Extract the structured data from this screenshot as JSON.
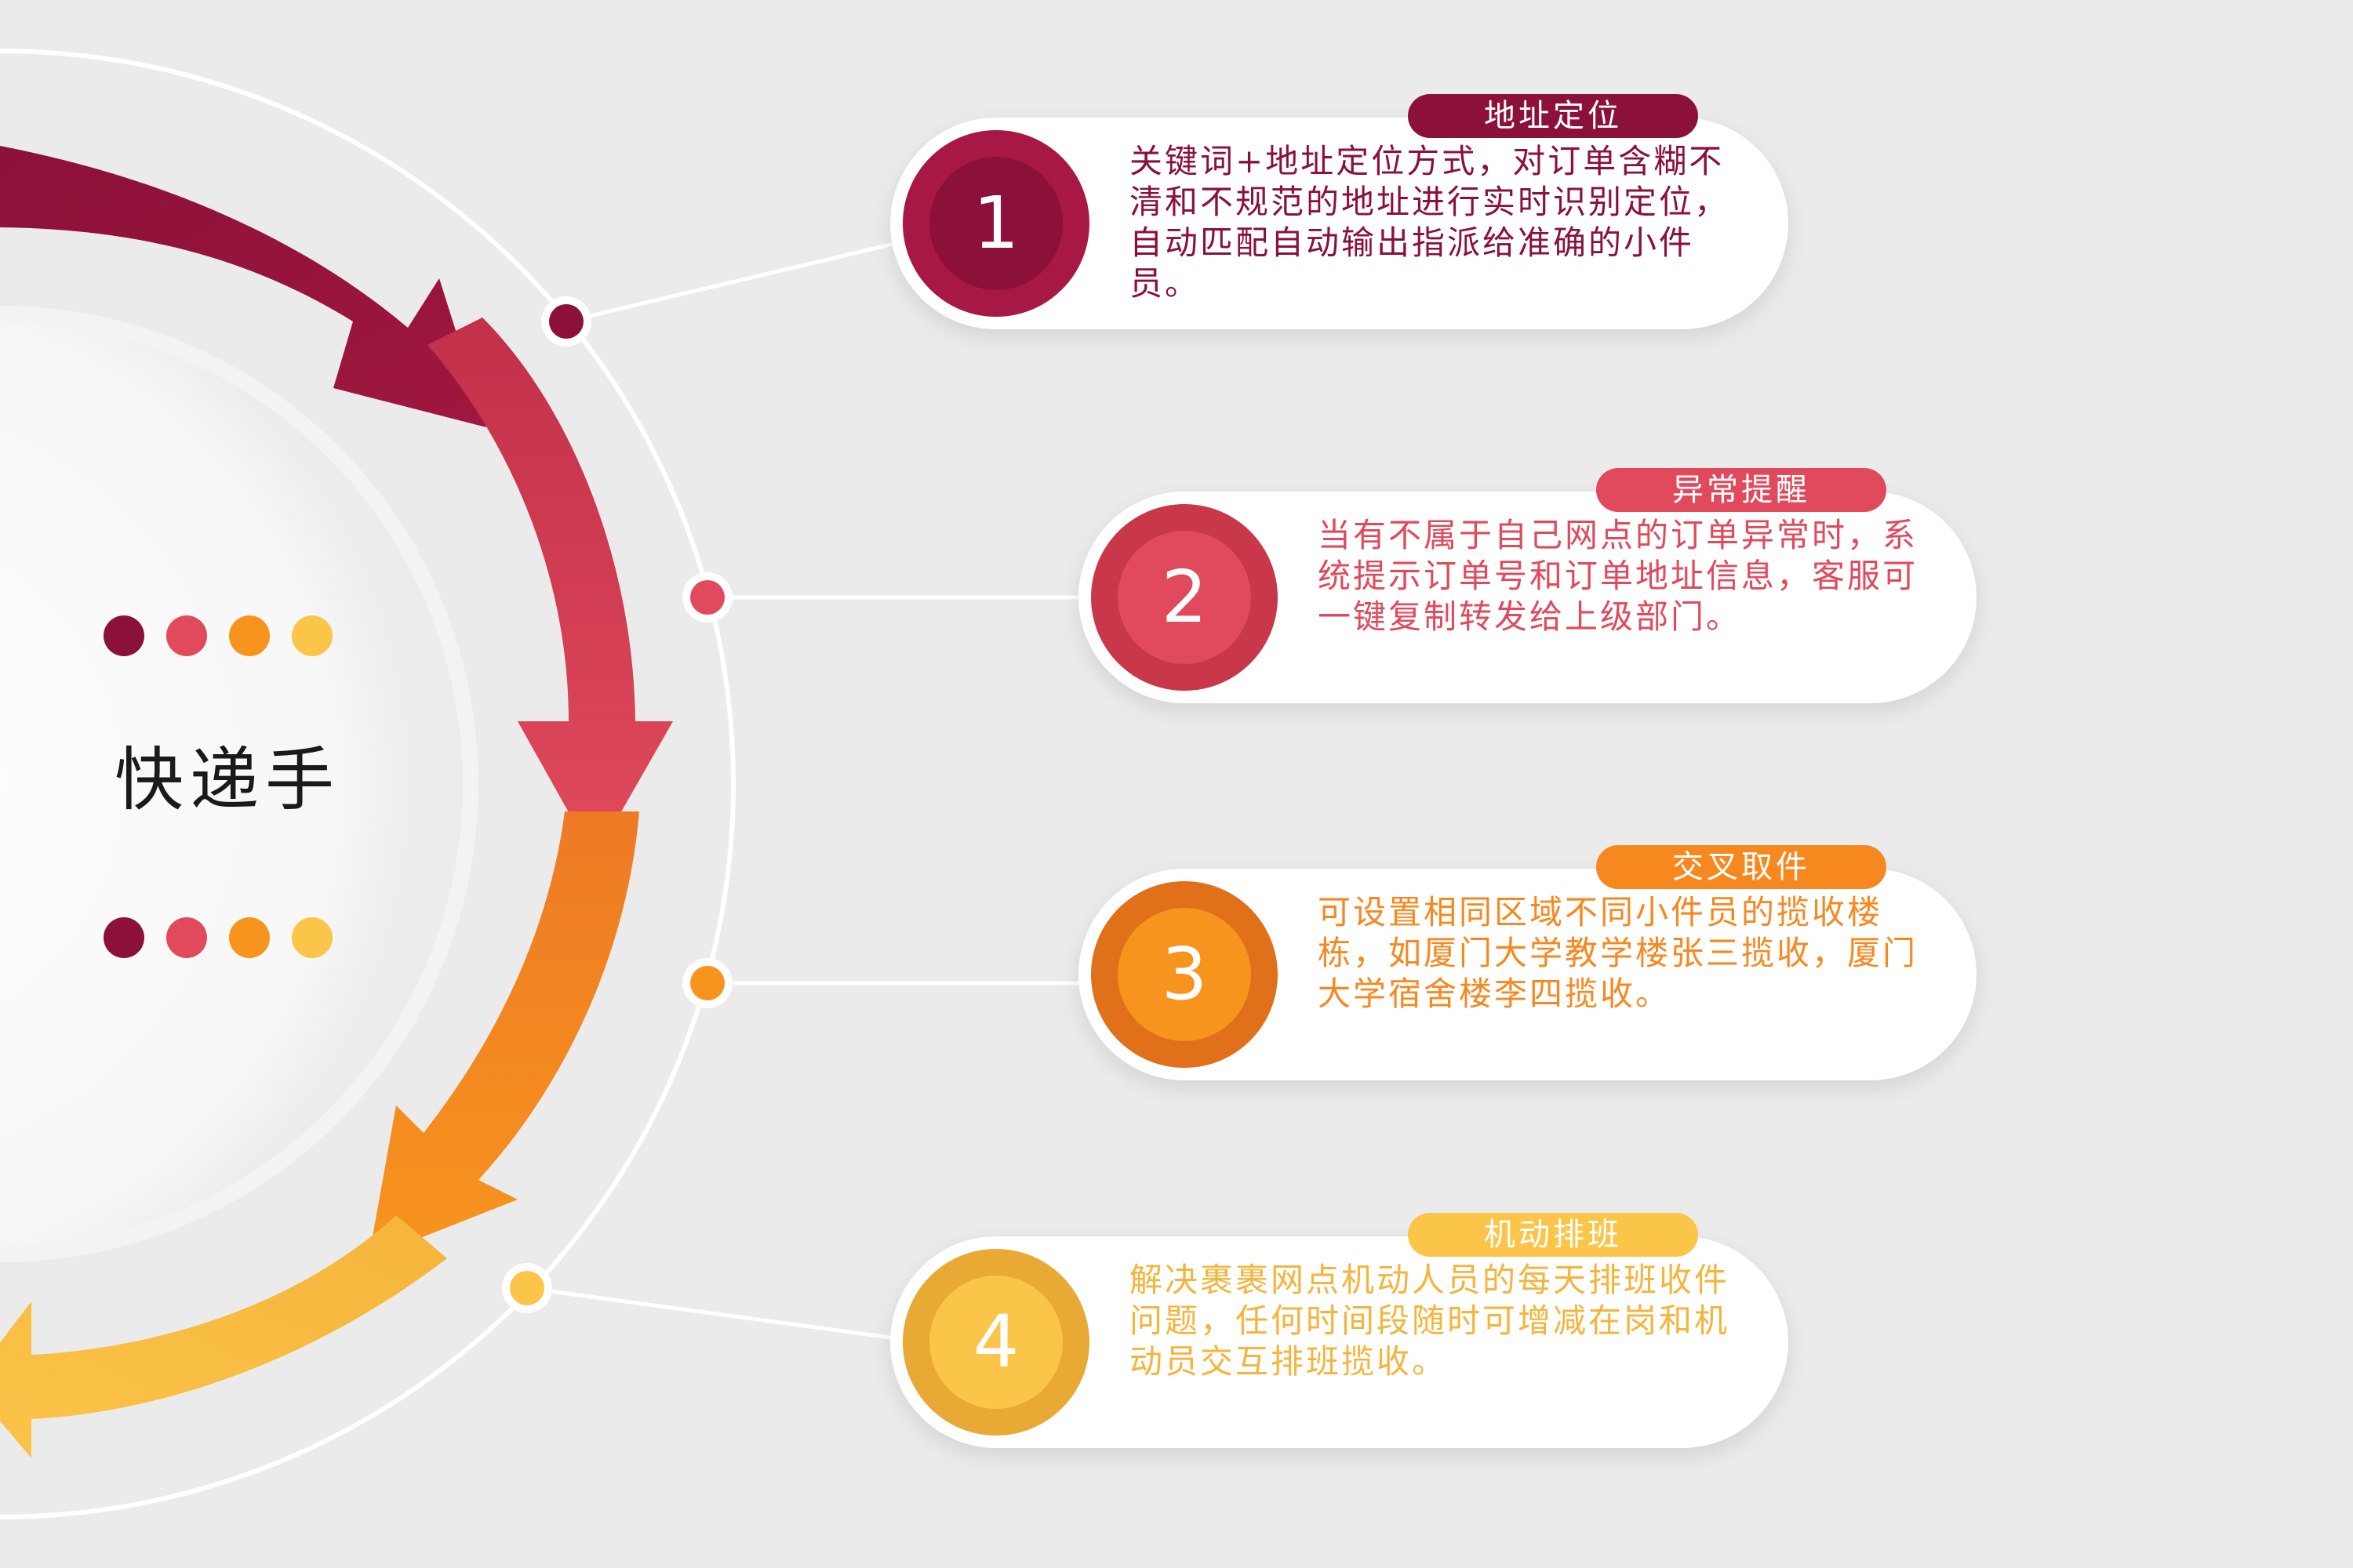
{
  "title": "快递手",
  "colors": {
    "c1": "#8b1138",
    "c2": "#e14a5c",
    "c3": "#f7881f",
    "c4": "#fbc54a",
    "ring": "#ffffff"
  },
  "steps": [
    {
      "number": "1",
      "tag": "地址定位",
      "text": "关键词+地址定位方式，对订单含糊不清和不规范的地址进行实时识别定位，自动匹配自动输出指派给准确的小件员。"
    },
    {
      "number": "2",
      "tag": "异常提醒",
      "text": "当有不属于自己网点的订单异常时，系统提示订单号和订单地址信息，客服可一键复制转发给上级部门。"
    },
    {
      "number": "3",
      "tag": "交叉取件",
      "text": "可设置相同区域不同小件员的揽收楼栋，如厦门大学教学楼张三揽收，厦门大学宿舍楼李四揽收。"
    },
    {
      "number": "4",
      "tag": "机动排班",
      "text": "解决裹裹网点机动人员的每天排班收件问题，任何时间段随时可增减在岗和机动员交互排班揽收。"
    }
  ]
}
